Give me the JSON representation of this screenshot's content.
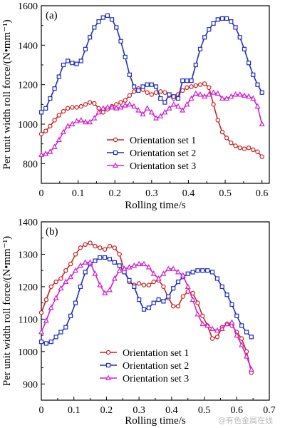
{
  "watermark": "@有色金属在线",
  "chart_data": [
    {
      "type": "line",
      "panel_label": "(a)",
      "xlabel": "Rolling time/s",
      "ylabel": "Per unit width roll force/(N•mm⁻¹)",
      "xlim": [
        0,
        0.62
      ],
      "ylim": [
        700,
        1600
      ],
      "xticks": [
        0,
        0.1,
        0.2,
        0.3,
        0.4,
        0.5,
        0.6
      ],
      "xtick_labels": [
        "0",
        "0.1",
        "0.2",
        "0.3",
        "0.4",
        "0.5",
        "0.6"
      ],
      "yticks": [
        800,
        1000,
        1200,
        1400,
        1600
      ],
      "ytick_labels": [
        "800",
        "1000",
        "1200",
        "1400",
        "1600"
      ],
      "legend": "center-right",
      "grid": false,
      "series": [
        {
          "name": "Orientation set 1",
          "color": "#cc2222",
          "marker": "circle",
          "x": [
            0,
            0.012,
            0.024,
            0.036,
            0.048,
            0.06,
            0.072,
            0.084,
            0.096,
            0.108,
            0.12,
            0.132,
            0.144,
            0.156,
            0.168,
            0.18,
            0.192,
            0.204,
            0.216,
            0.228,
            0.24,
            0.252,
            0.264,
            0.276,
            0.288,
            0.3,
            0.312,
            0.324,
            0.336,
            0.348,
            0.36,
            0.372,
            0.384,
            0.396,
            0.408,
            0.42,
            0.432,
            0.444,
            0.456,
            0.468,
            0.48,
            0.492,
            0.504,
            0.516,
            0.528,
            0.54,
            0.552,
            0.564,
            0.576,
            0.588,
            0.6
          ],
          "y": [
            950,
            965,
            990,
            1020,
            1045,
            1065,
            1080,
            1085,
            1085,
            1090,
            1100,
            1110,
            1105,
            1080,
            1060,
            1075,
            1090,
            1100,
            1110,
            1120,
            1145,
            1165,
            1180,
            1175,
            1160,
            1150,
            1160,
            1165,
            1160,
            1145,
            1130,
            1150,
            1170,
            1185,
            1190,
            1195,
            1200,
            1205,
            1185,
            1100,
            1020,
            960,
            930,
            905,
            890,
            880,
            875,
            880,
            870,
            860,
            835
          ]
        },
        {
          "name": "Orientation set 2",
          "color": "#1f2fbf",
          "marker": "square",
          "x": [
            0,
            0.012,
            0.024,
            0.036,
            0.048,
            0.06,
            0.072,
            0.084,
            0.096,
            0.108,
            0.12,
            0.132,
            0.144,
            0.156,
            0.168,
            0.18,
            0.192,
            0.204,
            0.216,
            0.228,
            0.24,
            0.252,
            0.264,
            0.276,
            0.288,
            0.3,
            0.312,
            0.324,
            0.336,
            0.348,
            0.36,
            0.372,
            0.384,
            0.396,
            0.408,
            0.42,
            0.432,
            0.444,
            0.456,
            0.468,
            0.48,
            0.492,
            0.504,
            0.516,
            0.528,
            0.54,
            0.552,
            0.564,
            0.576,
            0.588,
            0.6
          ],
          "y": [
            1060,
            1080,
            1130,
            1180,
            1240,
            1300,
            1320,
            1310,
            1305,
            1320,
            1380,
            1440,
            1490,
            1520,
            1540,
            1550,
            1530,
            1490,
            1420,
            1340,
            1250,
            1190,
            1170,
            1190,
            1200,
            1200,
            1190,
            1130,
            1110,
            1150,
            1140,
            1130,
            1220,
            1220,
            1220,
            1300,
            1380,
            1440,
            1480,
            1510,
            1530,
            1535,
            1535,
            1520,
            1490,
            1440,
            1380,
            1310,
            1250,
            1200,
            1160
          ]
        },
        {
          "name": "Orientation set 3",
          "color": "#d020d0",
          "marker": "triangle",
          "x": [
            0,
            0.012,
            0.024,
            0.036,
            0.048,
            0.06,
            0.072,
            0.084,
            0.096,
            0.108,
            0.12,
            0.132,
            0.144,
            0.156,
            0.168,
            0.18,
            0.192,
            0.204,
            0.216,
            0.228,
            0.24,
            0.252,
            0.264,
            0.276,
            0.288,
            0.3,
            0.312,
            0.324,
            0.336,
            0.348,
            0.36,
            0.372,
            0.384,
            0.396,
            0.408,
            0.42,
            0.432,
            0.444,
            0.456,
            0.468,
            0.48,
            0.492,
            0.504,
            0.516,
            0.528,
            0.54,
            0.552,
            0.564,
            0.576,
            0.588,
            0.6
          ],
          "y": [
            845,
            850,
            860,
            885,
            920,
            960,
            990,
            1000,
            1015,
            1020,
            1010,
            1010,
            1030,
            1060,
            1080,
            1085,
            1085,
            1080,
            1085,
            1095,
            1100,
            1090,
            1070,
            1050,
            1080,
            1060,
            1030,
            1040,
            1060,
            1080,
            1100,
            1090,
            1070,
            1100,
            1130,
            1155,
            1150,
            1140,
            1150,
            1160,
            1155,
            1130,
            1130,
            1140,
            1150,
            1150,
            1145,
            1140,
            1130,
            1090,
            1000
          ]
        }
      ]
    },
    {
      "type": "line",
      "panel_label": "(b)",
      "xlabel": "Rolling time/s",
      "ylabel": "Per unit width roll force/(N•mm⁻¹)",
      "xlim": [
        0,
        0.7
      ],
      "ylim": [
        850,
        1400
      ],
      "xticks": [
        0,
        0.1,
        0.2,
        0.3,
        0.4,
        0.5,
        0.6,
        0.7
      ],
      "xtick_labels": [
        "0",
        "0.1",
        "0.2",
        "0.3",
        "0.4",
        "0.5",
        "0.6",
        "0.7"
      ],
      "yticks": [
        900,
        1000,
        1100,
        1200,
        1300,
        1400
      ],
      "ytick_labels": [
        "900",
        "1000",
        "1100",
        "1200",
        "1300",
        "1400"
      ],
      "legend": "lower-center",
      "grid": false,
      "series": [
        {
          "name": "Orientation set 1",
          "color": "#cc2222",
          "marker": "circle",
          "x": [
            0,
            0.015,
            0.03,
            0.045,
            0.06,
            0.075,
            0.09,
            0.105,
            0.12,
            0.135,
            0.15,
            0.165,
            0.18,
            0.195,
            0.21,
            0.225,
            0.24,
            0.255,
            0.27,
            0.285,
            0.3,
            0.315,
            0.33,
            0.345,
            0.36,
            0.375,
            0.39,
            0.405,
            0.42,
            0.435,
            0.45,
            0.465,
            0.48,
            0.495,
            0.51,
            0.525,
            0.54,
            0.555,
            0.57,
            0.585,
            0.6,
            0.615,
            0.63,
            0.645
          ],
          "y": [
            1120,
            1160,
            1200,
            1215,
            1225,
            1250,
            1270,
            1300,
            1320,
            1330,
            1335,
            1325,
            1320,
            1315,
            1325,
            1320,
            1300,
            1250,
            1215,
            1205,
            1210,
            1205,
            1205,
            1215,
            1220,
            1200,
            1165,
            1140,
            1140,
            1170,
            1185,
            1180,
            1150,
            1110,
            1080,
            1040,
            1045,
            1075,
            1085,
            1080,
            1060,
            1040,
            1000,
            935
          ]
        },
        {
          "name": "Orientation set 2",
          "color": "#1f2fbf",
          "marker": "square",
          "x": [
            0,
            0.015,
            0.03,
            0.045,
            0.06,
            0.075,
            0.09,
            0.105,
            0.12,
            0.135,
            0.15,
            0.165,
            0.18,
            0.195,
            0.21,
            0.225,
            0.24,
            0.255,
            0.27,
            0.285,
            0.3,
            0.315,
            0.33,
            0.345,
            0.36,
            0.375,
            0.39,
            0.405,
            0.42,
            0.435,
            0.45,
            0.465,
            0.48,
            0.495,
            0.51,
            0.525,
            0.54,
            0.555,
            0.57,
            0.585,
            0.6,
            0.615,
            0.63,
            0.645
          ],
          "y": [
            1030,
            1025,
            1030,
            1045,
            1060,
            1075,
            1110,
            1150,
            1200,
            1245,
            1270,
            1280,
            1290,
            1290,
            1285,
            1275,
            1265,
            1245,
            1220,
            1200,
            1160,
            1130,
            1135,
            1150,
            1160,
            1155,
            1170,
            1195,
            1215,
            1230,
            1240,
            1245,
            1250,
            1250,
            1250,
            1245,
            1225,
            1200,
            1175,
            1145,
            1110,
            1080,
            1060,
            1045
          ]
        },
        {
          "name": "Orientation set 3",
          "color": "#d020d0",
          "marker": "triangle",
          "x": [
            0,
            0.015,
            0.03,
            0.045,
            0.06,
            0.075,
            0.09,
            0.105,
            0.12,
            0.135,
            0.15,
            0.165,
            0.18,
            0.195,
            0.21,
            0.225,
            0.24,
            0.255,
            0.27,
            0.285,
            0.3,
            0.315,
            0.33,
            0.345,
            0.36,
            0.375,
            0.39,
            0.405,
            0.42,
            0.435,
            0.45,
            0.465,
            0.48,
            0.495,
            0.51,
            0.525,
            0.54,
            0.555,
            0.57,
            0.585,
            0.6,
            0.615,
            0.63,
            0.645
          ],
          "y": [
            1060,
            1095,
            1135,
            1165,
            1195,
            1215,
            1230,
            1250,
            1265,
            1275,
            1275,
            1240,
            1205,
            1180,
            1190,
            1225,
            1250,
            1255,
            1260,
            1265,
            1270,
            1270,
            1260,
            1240,
            1225,
            1240,
            1255,
            1255,
            1245,
            1235,
            1200,
            1160,
            1115,
            1085,
            1080,
            1070,
            1065,
            1070,
            1085,
            1090,
            1050,
            1020,
            985,
            945
          ]
        }
      ]
    }
  ]
}
